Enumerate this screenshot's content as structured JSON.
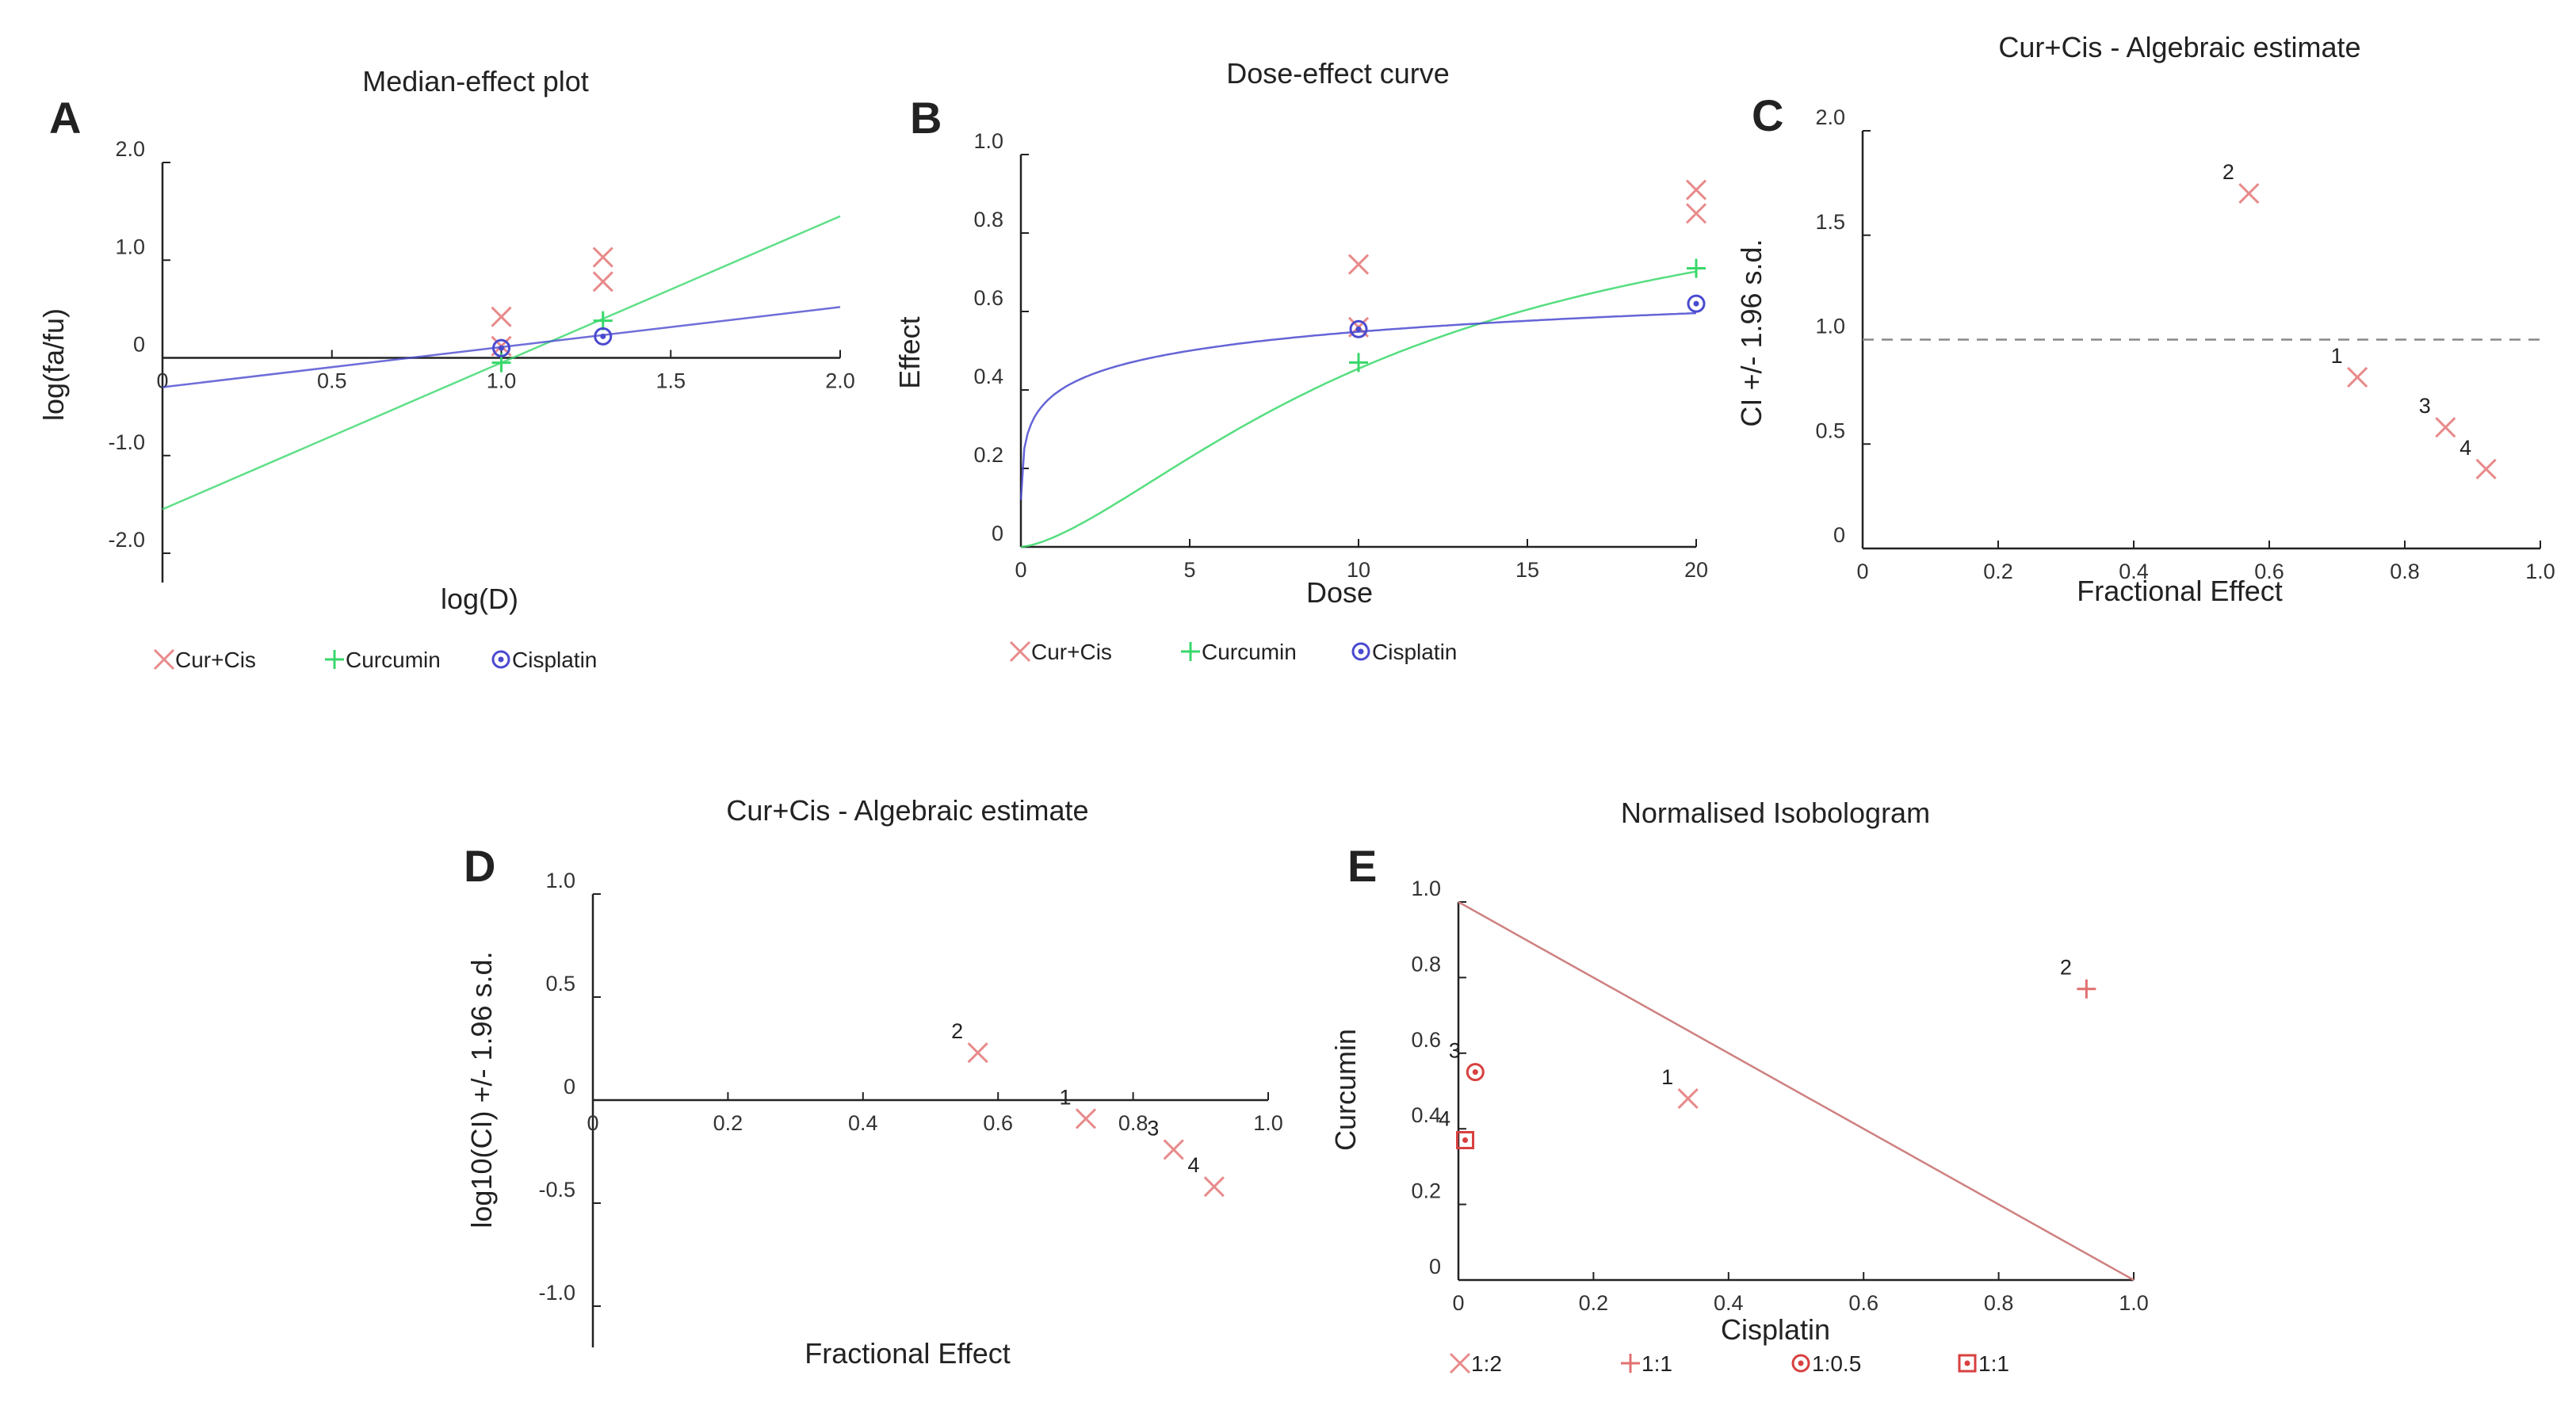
{
  "colors": {
    "cur_cis": "#e88a8a",
    "curcumin": "#38d86a",
    "cisplatin": "#4a4ad0",
    "isoline": "#cf8080",
    "axis": "#222222",
    "ref": "#888888"
  },
  "chart_data": [
    {
      "id": "A",
      "letter": "A",
      "type": "line",
      "title": "Median-effect plot",
      "xlabel": "log(D)",
      "ylabel": "log(fa/fu)",
      "xlim": [
        0,
        2.0
      ],
      "ylim": [
        -2.3,
        2.0
      ],
      "x_axis_at_y": 0,
      "y_axis_at_x": 0,
      "xticks": [
        {
          "v": 0,
          "t": "0"
        },
        {
          "v": 0.5,
          "t": "0.5"
        },
        {
          "v": 1.0,
          "t": "1.0"
        },
        {
          "v": 1.5,
          "t": "1.5"
        },
        {
          "v": 2.0,
          "t": "2.0"
        }
      ],
      "yticks": [
        {
          "v": 2.0,
          "t": "2.0"
        },
        {
          "v": 1.0,
          "t": "1.0"
        },
        {
          "v": 0,
          "t": "0"
        },
        {
          "v": -1.0,
          "t": "-1.0"
        },
        {
          "v": -2.0,
          "t": "-2.0"
        }
      ],
      "series": [
        {
          "name": "Cur+Cis",
          "marker": "x",
          "color": "#e88a8a",
          "points": [
            [
              1.0,
              0.42
            ],
            [
              1.0,
              0.12
            ],
            [
              1.3,
              1.03
            ],
            [
              1.3,
              0.78
            ]
          ]
        },
        {
          "name": "Curcumin",
          "marker": "plus",
          "color": "#38d86a",
          "points": [
            [
              1.0,
              -0.05
            ],
            [
              1.3,
              0.38
            ]
          ],
          "line": [
            [
              0,
              -1.55
            ],
            [
              2.0,
              1.45
            ]
          ]
        },
        {
          "name": "Cisplatin",
          "marker": "circdot",
          "color": "#4a4ad0",
          "points": [
            [
              1.0,
              0.1
            ],
            [
              1.3,
              0.22
            ]
          ],
          "line": [
            [
              0,
              -0.3
            ],
            [
              2.0,
              0.52
            ]
          ]
        }
      ]
    },
    {
      "id": "B",
      "letter": "B",
      "type": "line",
      "title": "Dose-effect curve",
      "xlabel": "Dose",
      "ylabel": "Effect",
      "xlim": [
        0,
        20
      ],
      "ylim": [
        0,
        1.0
      ],
      "x_axis_at_y": 0,
      "y_axis_at_x": 0,
      "xticks": [
        {
          "v": 0,
          "t": "0"
        },
        {
          "v": 5,
          "t": "5"
        },
        {
          "v": 10,
          "t": "10"
        },
        {
          "v": 15,
          "t": "15"
        },
        {
          "v": 20,
          "t": "20"
        }
      ],
      "yticks": [
        {
          "v": 1.0,
          "t": "1.0"
        },
        {
          "v": 0.8,
          "t": "0.8"
        },
        {
          "v": 0.6,
          "t": "0.6"
        },
        {
          "v": 0.4,
          "t": "0.4"
        },
        {
          "v": 0.2,
          "t": "0.2"
        },
        {
          "v": 0,
          "t": "0"
        }
      ],
      "series": [
        {
          "name": "Cur+Cis",
          "marker": "x",
          "color": "#e88a8a",
          "points": [
            [
              10,
              0.72
            ],
            [
              10,
              0.56
            ],
            [
              20,
              0.91
            ],
            [
              20,
              0.85
            ]
          ]
        },
        {
          "name": "Curcumin",
          "marker": "plus",
          "color": "#38d86a",
          "points": [
            [
              10,
              0.47
            ],
            [
              20,
              0.71
            ]
          ],
          "curve": {
            "dm": 11.3,
            "m": 1.5
          }
        },
        {
          "name": "Cisplatin",
          "marker": "circdot",
          "color": "#4a4ad0",
          "points": [
            [
              10,
              0.555
            ],
            [
              20,
              0.62
            ]
          ],
          "curve": {
            "dm": 5.0,
            "m": 0.28
          }
        }
      ]
    },
    {
      "id": "C",
      "letter": "C",
      "type": "scatter",
      "title": "Cur+Cis - Algebraic estimate",
      "xlabel": "Fractional Effect",
      "ylabel": "CI +/- 1.96 s.d.",
      "xlim": [
        0,
        1.0
      ],
      "ylim": [
        0,
        2.0
      ],
      "x_axis_at_y": 0,
      "y_axis_at_x": 0,
      "xticks": [
        {
          "v": 0,
          "t": "0"
        },
        {
          "v": 0.2,
          "t": "0.2"
        },
        {
          "v": 0.4,
          "t": "0.4"
        },
        {
          "v": 0.6,
          "t": "0.6"
        },
        {
          "v": 0.8,
          "t": "0.8"
        },
        {
          "v": 1.0,
          "t": "1.0"
        }
      ],
      "yticks": [
        {
          "v": 2.0,
          "t": "2.0"
        },
        {
          "v": 1.5,
          "t": "1.5"
        },
        {
          "v": 1.0,
          "t": "1.0"
        },
        {
          "v": 0.5,
          "t": "0.5"
        },
        {
          "v": 0,
          "t": "0"
        }
      ],
      "reference_y": 1.0,
      "series": [
        {
          "name": "Cur+Cis",
          "marker": "x",
          "color": "#e88a8a",
          "points": [
            [
              0.73,
              0.82,
              "1"
            ],
            [
              0.57,
              1.7,
              "2"
            ],
            [
              0.86,
              0.58,
              "3"
            ],
            [
              0.92,
              0.38,
              "4"
            ]
          ]
        }
      ]
    },
    {
      "id": "D",
      "letter": "D",
      "type": "scatter",
      "title": "Cur+Cis - Algebraic estimate",
      "xlabel": "Fractional Effect",
      "ylabel": "log10(CI) +/- 1.96 s.d.",
      "xlim": [
        0,
        1.0
      ],
      "ylim": [
        -1.2,
        1.0
      ],
      "x_axis_at_y": 0,
      "y_axis_at_x": 0,
      "xticks": [
        {
          "v": 0,
          "t": "0"
        },
        {
          "v": 0.2,
          "t": "0.2"
        },
        {
          "v": 0.4,
          "t": "0.4"
        },
        {
          "v": 0.6,
          "t": "0.6"
        },
        {
          "v": 0.8,
          "t": "0.8"
        },
        {
          "v": 1.0,
          "t": "1.0"
        }
      ],
      "yticks": [
        {
          "v": 1.0,
          "t": "1.0"
        },
        {
          "v": 0.5,
          "t": "0.5"
        },
        {
          "v": 0,
          "t": "0"
        },
        {
          "v": -0.5,
          "t": "-0.5"
        },
        {
          "v": -1.0,
          "t": "-1.0"
        }
      ],
      "series": [
        {
          "name": "Cur+Cis",
          "marker": "x",
          "color": "#e88a8a",
          "points": [
            [
              0.73,
              -0.09,
              "1"
            ],
            [
              0.57,
              0.23,
              "2"
            ],
            [
              0.86,
              -0.24,
              "3"
            ],
            [
              0.92,
              -0.42,
              "4"
            ]
          ]
        }
      ]
    },
    {
      "id": "E",
      "letter": "E",
      "type": "scatter",
      "title": "Normalised Isobologram",
      "xlabel": "Cisplatin",
      "ylabel": "Curcumin",
      "xlim": [
        0,
        1.0
      ],
      "ylim": [
        0,
        1.0
      ],
      "x_axis_at_y": 0,
      "y_axis_at_x": 0,
      "xticks": [
        {
          "v": 0,
          "t": "0"
        },
        {
          "v": 0.2,
          "t": "0.2"
        },
        {
          "v": 0.4,
          "t": "0.4"
        },
        {
          "v": 0.6,
          "t": "0.6"
        },
        {
          "v": 0.8,
          "t": "0.8"
        },
        {
          "v": 1.0,
          "t": "1.0"
        }
      ],
      "yticks": [
        {
          "v": 1.0,
          "t": "1.0"
        },
        {
          "v": 0.8,
          "t": "0.8"
        },
        {
          "v": 0.6,
          "t": "0.6"
        },
        {
          "v": 0.4,
          "t": "0.4"
        },
        {
          "v": 0.2,
          "t": "0.2"
        },
        {
          "v": 0,
          "t": "0"
        }
      ],
      "isobole": [
        [
          0,
          1.0
        ],
        [
          1.0,
          0
        ]
      ],
      "series": [
        {
          "name": "1:2",
          "marker": "x",
          "color": "#e88a8a",
          "points": [
            [
              0.34,
              0.48,
              "1"
            ]
          ]
        },
        {
          "name": "1:1",
          "marker": "plus",
          "color": "#e07070",
          "points": [
            [
              0.93,
              0.77,
              "2"
            ]
          ]
        },
        {
          "name": "1:0.5",
          "marker": "circdot",
          "color": "#d84040",
          "points": [
            [
              0.025,
              0.55,
              "3"
            ]
          ]
        },
        {
          "name": "1:1",
          "marker": "sqdot",
          "color": "#d84040",
          "points": [
            [
              0.01,
              0.37,
              "4"
            ]
          ]
        }
      ]
    }
  ]
}
